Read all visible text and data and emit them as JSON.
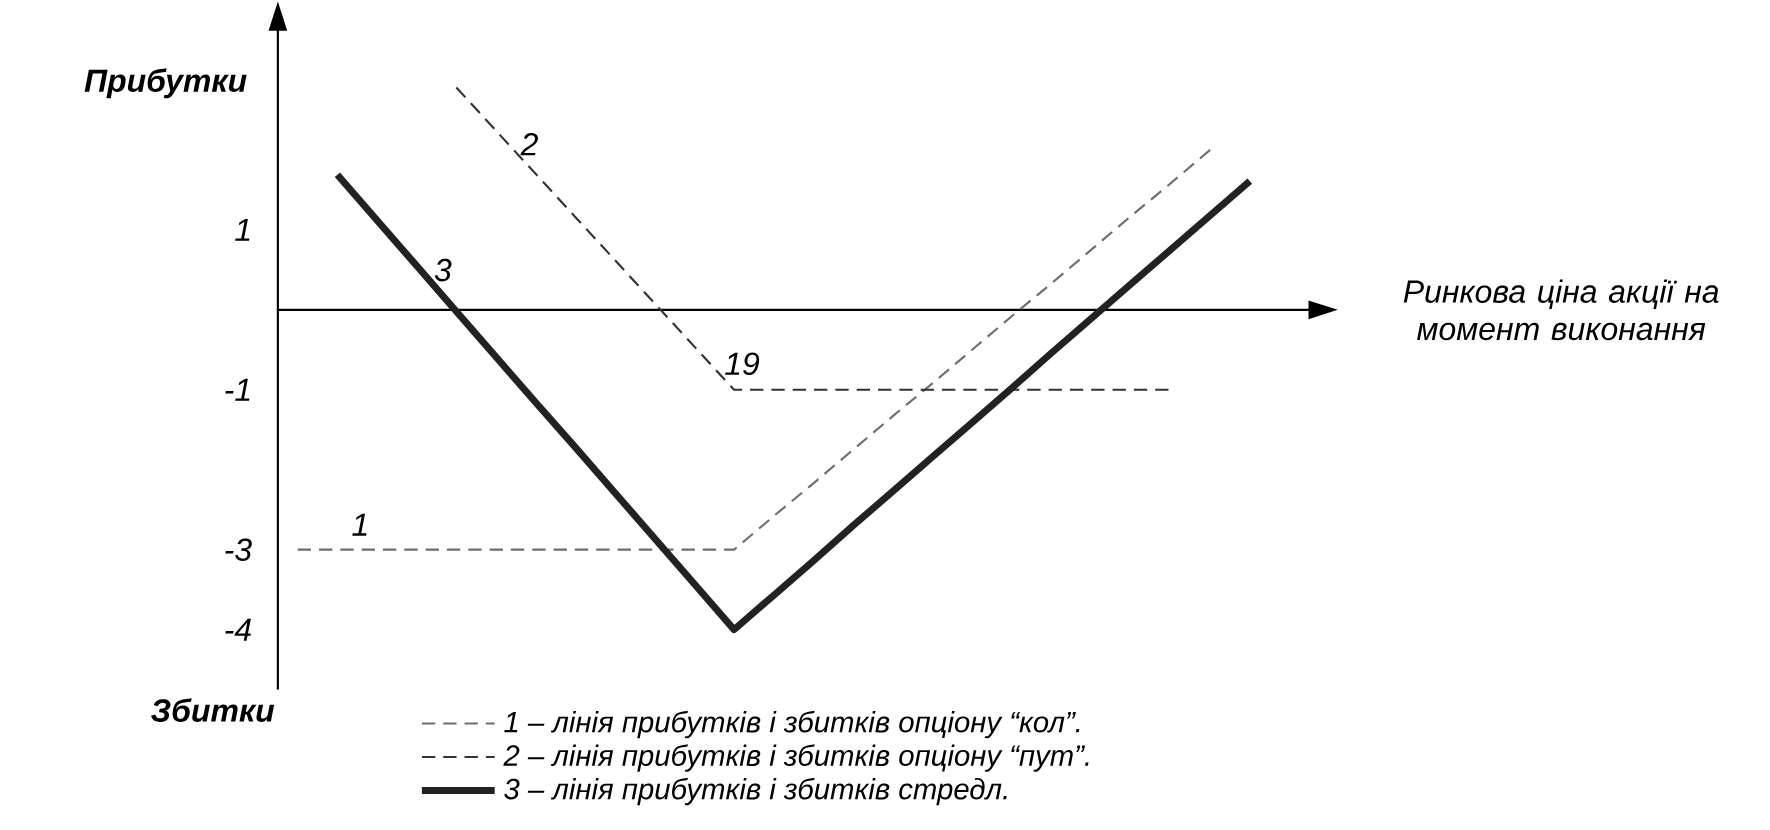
{
  "chart_data": {
    "type": "line",
    "xlabel": "Ринкова ціна акції на момент виконання",
    "ylabel": "Прибутки",
    "annotations": [
      "Збитки",
      "1",
      "2",
      "3",
      "19"
    ],
    "categories": [
      null,
      null,
      null,
      null,
      null,
      null,
      null,
      null,
      null,
      null,
      null,
      null,
      null,
      null,
      null,
      null,
      null,
      null,
      null,
      null,
      null,
      null,
      null,
      null,
      null,
      null
    ],
    "ylim": [
      -4.75,
      3.5
    ],
    "yticks": [
      1,
      -1,
      -3,
      -4
    ],
    "tick_labels": "y",
    "legend": "bottom",
    "series": [
      {
        "name": "1 – лінія прибутків і збитків опціону “кол”.",
        "color": "#6e6e6e",
        "line_style": "dashed",
        "values": [
          -3,
          -3,
          -3,
          -3,
          -3,
          -3,
          -3,
          -3,
          -3,
          -3,
          -3,
          -3,
          -2.58,
          -2.17,
          -1.75,
          -1.33,
          -0.92,
          -0.5,
          -0.08,
          0.33,
          0.75,
          1.17,
          1.58,
          2.0,
          null,
          null
        ]
      },
      {
        "name": "2 – лінія прибутків і збитків опціону “пут”.",
        "color": "#333333",
        "line_style": "dashed",
        "values": [
          null,
          null,
          null,
          null,
          2.78,
          2.24,
          1.7,
          1.16,
          0.62,
          0.08,
          -0.46,
          -1,
          -1,
          -1,
          -1,
          -1,
          -1,
          -1,
          -1,
          -1,
          -1,
          -1,
          -1,
          null,
          null,
          null
        ]
      },
      {
        "name": "3 – лінія прибутків і збитків стредл.",
        "color": "#222222",
        "line_style": "solid",
        "values": [
          null,
          1.69,
          1.12,
          0.55,
          -0.02,
          -0.59,
          -1.16,
          -1.72,
          -2.29,
          -2.86,
          -3.43,
          -4,
          -3.57,
          -3.14,
          -2.7,
          -2.27,
          -1.84,
          -1.41,
          -0.98,
          -0.54,
          -0.11,
          0.32,
          0.75,
          1.18,
          1.61,
          null
        ]
      }
    ]
  }
}
